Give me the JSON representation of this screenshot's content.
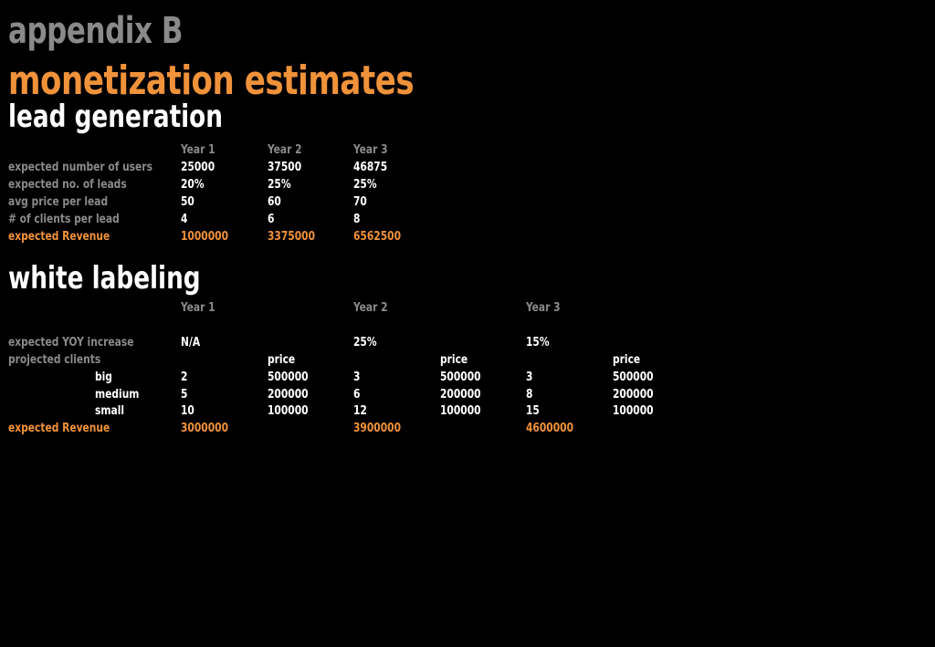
{
  "titles": {
    "appendix": "appendix B",
    "monetization": "monetization estimates"
  },
  "lead_generation": {
    "heading": "lead generation",
    "headers": [
      "Year 1",
      "Year 2",
      "Year 3"
    ],
    "rows": [
      {
        "label": "expected number of users",
        "values": [
          "25000",
          "37500",
          "46875"
        ]
      },
      {
        "label": "expected no. of leads",
        "values": [
          "20%",
          "25%",
          "25%"
        ]
      },
      {
        "label": "avg price per lead",
        "values": [
          "50",
          "60",
          "70"
        ]
      },
      {
        "label": "# of clients per lead",
        "values": [
          "4",
          "6",
          "8"
        ]
      }
    ],
    "revenue": {
      "label": "expected Revenue",
      "values": [
        "1000000",
        "3375000",
        "6562500"
      ]
    }
  },
  "white_labeling": {
    "heading": "white labeling",
    "headers": [
      "Year 1",
      "Year 2",
      "Year 3"
    ],
    "yoy": {
      "label": "expected YOY increase",
      "values": [
        "N/A",
        "25%",
        "15%"
      ]
    },
    "projected": {
      "label": "projected clients",
      "price_label": "price"
    },
    "tiers": [
      {
        "label": "big",
        "clients": [
          "2",
          "3",
          "3"
        ],
        "prices": [
          "500000",
          "500000",
          "500000"
        ]
      },
      {
        "label": "medium",
        "clients": [
          "5",
          "6",
          "8"
        ],
        "prices": [
          "200000",
          "200000",
          "200000"
        ]
      },
      {
        "label": "small",
        "clients": [
          "10",
          "12",
          "15"
        ],
        "prices": [
          "100000",
          "100000",
          "100000"
        ]
      }
    ],
    "revenue": {
      "label": "expected Revenue",
      "values": [
        "3000000",
        "3900000",
        "4600000"
      ]
    }
  }
}
